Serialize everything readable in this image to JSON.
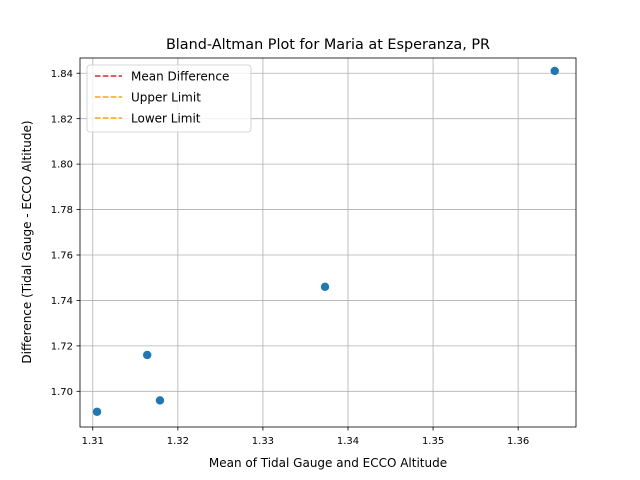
{
  "chart_data": {
    "type": "scatter",
    "title": "Bland-Altman Plot for Maria at Esperanza, PR",
    "xlabel": "Mean of Tidal Gauge and ECCO Altitude",
    "ylabel": "Difference (Tidal Gauge - ECCO Altitude)",
    "xlim": [
      1.3085,
      1.3668
    ],
    "ylim": [
      1.6843,
      1.8467
    ],
    "xticks": [
      1.31,
      1.32,
      1.33,
      1.34,
      1.35,
      1.36
    ],
    "xtick_labels": [
      "1.31",
      "1.32",
      "1.33",
      "1.34",
      "1.35",
      "1.36"
    ],
    "yticks": [
      1.7,
      1.72,
      1.74,
      1.76,
      1.78,
      1.8,
      1.82,
      1.84
    ],
    "ytick_labels": [
      "1.70",
      "1.72",
      "1.74",
      "1.76",
      "1.78",
      "1.80",
      "1.82",
      "1.84"
    ],
    "grid": true,
    "legend_position": "top-left",
    "points": [
      {
        "x": 1.3105,
        "y": 1.691
      },
      {
        "x": 1.3164,
        "y": 1.716
      },
      {
        "x": 1.3179,
        "y": 1.696
      },
      {
        "x": 1.3373,
        "y": 1.746
      },
      {
        "x": 1.3643,
        "y": 1.841
      }
    ],
    "point_color": "#1f77b4",
    "legend": [
      {
        "label": "Mean Difference",
        "color": "#d62728",
        "style": "dashed"
      },
      {
        "label": "Upper Limit",
        "color": "#ffa500",
        "style": "dashed"
      },
      {
        "label": "Lower Limit",
        "color": "#ffa500",
        "style": "dashed"
      }
    ]
  }
}
